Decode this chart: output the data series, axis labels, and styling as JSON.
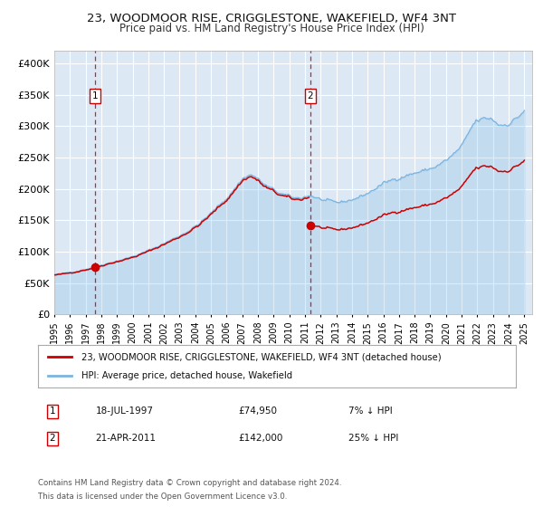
{
  "title": "23, WOODMOOR RISE, CRIGGLESTONE, WAKEFIELD, WF4 3NT",
  "subtitle": "Price paid vs. HM Land Registry's House Price Index (HPI)",
  "ylim": [
    0,
    420000
  ],
  "yticks": [
    0,
    50000,
    100000,
    150000,
    200000,
    250000,
    300000,
    350000,
    400000
  ],
  "ytick_labels": [
    "£0",
    "£50K",
    "£100K",
    "£150K",
    "£200K",
    "£250K",
    "£300K",
    "£350K",
    "£400K"
  ],
  "plot_bg_color": "#dce9f5",
  "grid_color": "#ffffff",
  "hpi_color": "#7ab4e0",
  "price_color": "#cc0000",
  "sale1_year": 1997.55,
  "sale1_price": 74950,
  "sale2_year": 2011.31,
  "sale2_price": 142000,
  "legend1_label": "23, WOODMOOR RISE, CRIGGLESTONE, WAKEFIELD, WF4 3NT (detached house)",
  "legend2_label": "HPI: Average price, detached house, Wakefield",
  "info1_num": "1",
  "info1_date": "18-JUL-1997",
  "info1_price": "£74,950",
  "info1_hpi": "7% ↓ HPI",
  "info2_num": "2",
  "info2_date": "21-APR-2011",
  "info2_price": "£142,000",
  "info2_hpi": "25% ↓ HPI",
  "footer_line1": "Contains HM Land Registry data © Crown copyright and database right 2024.",
  "footer_line2": "This data is licensed under the Open Government Licence v3.0."
}
